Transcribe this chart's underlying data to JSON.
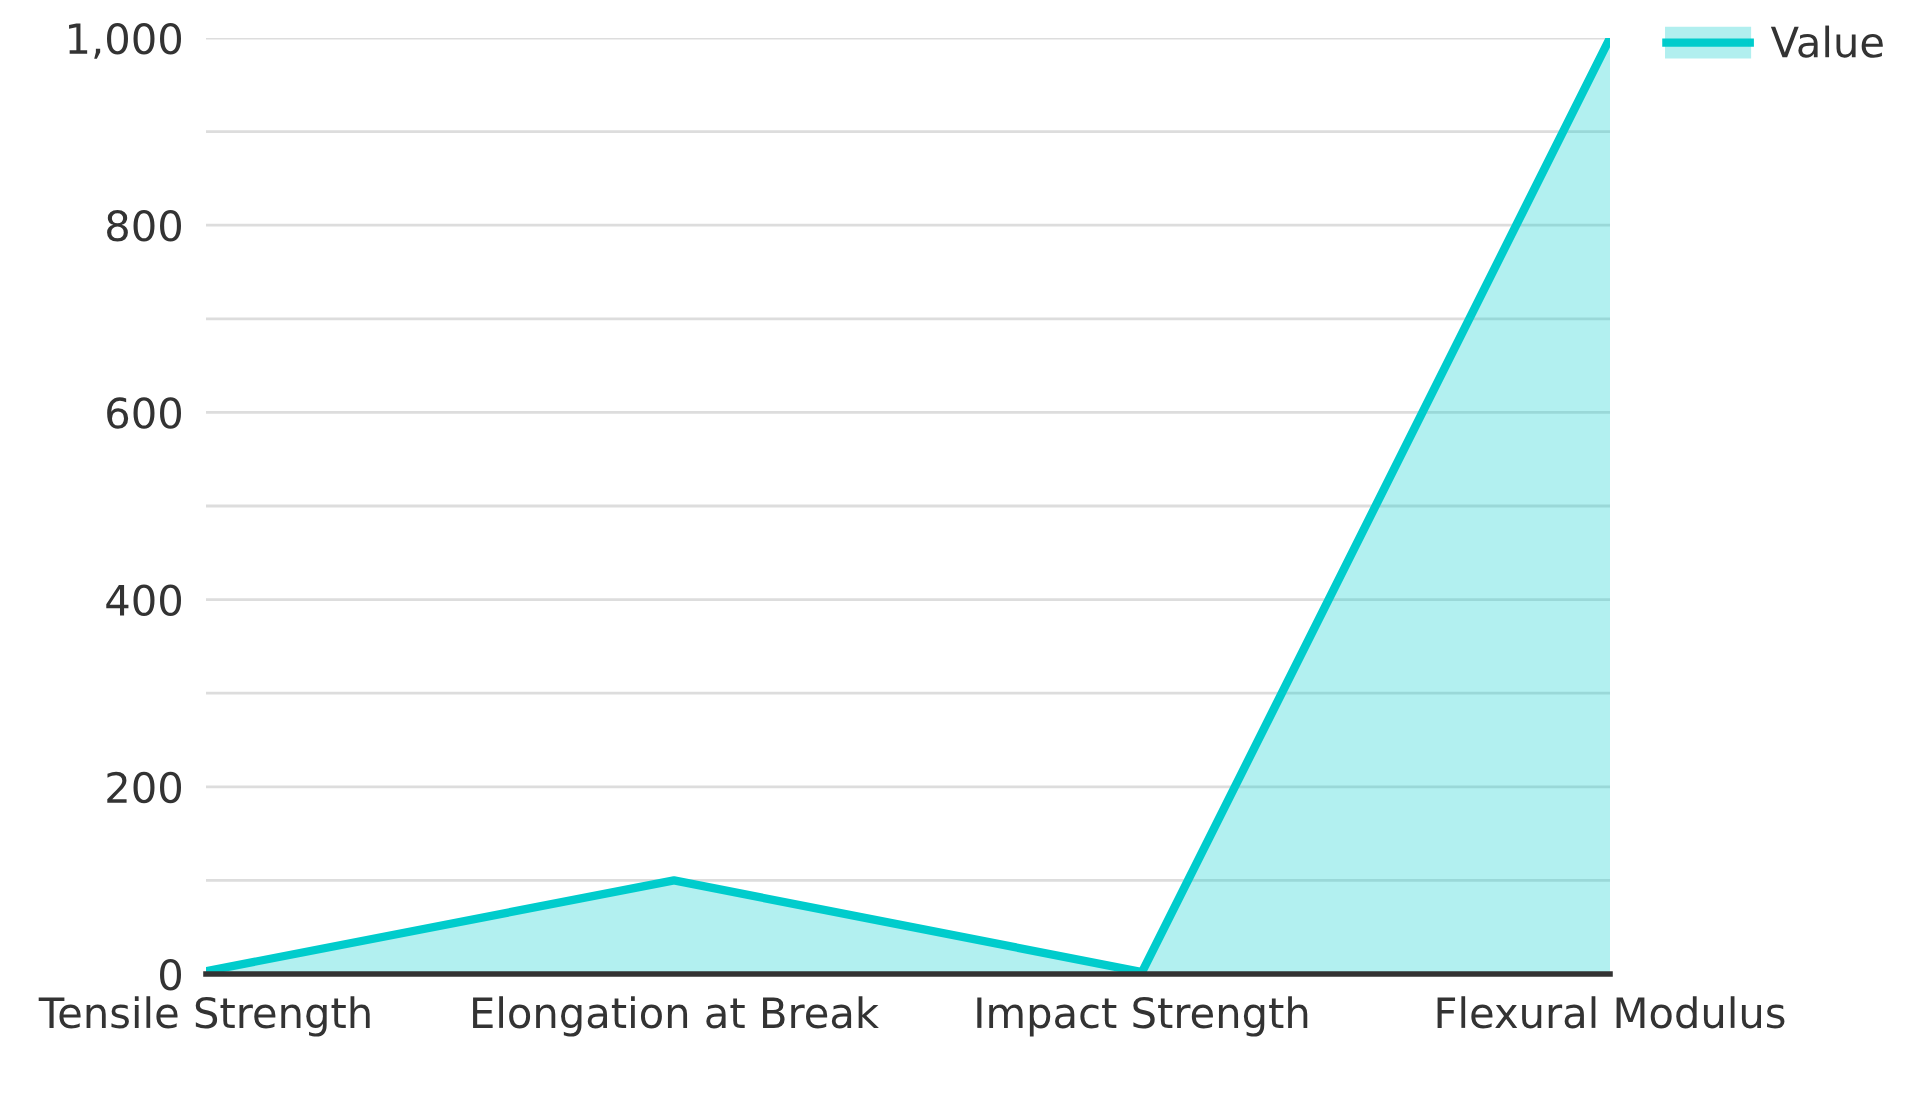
{
  "chart_data": {
    "type": "area",
    "categories": [
      "Tensile Strength",
      "Elongation at Break",
      "Impact Strength",
      "Flexural Modulus"
    ],
    "series": [
      {
        "name": "Value",
        "color": "#00cccc",
        "values": [
          3,
          100,
          2,
          1000
        ]
      }
    ],
    "ylim": [
      0,
      1000
    ],
    "yticks": [
      0,
      {
        "value": 100,
        "label": null
      },
      200,
      {
        "value": 300,
        "label": null
      },
      400,
      {
        "value": 500,
        "label": null
      },
      600,
      {
        "value": 700,
        "label": null
      },
      800,
      {
        "value": 900,
        "label": null
      },
      {
        "value": 1000,
        "label": "1,000"
      }
    ],
    "grid": "y",
    "legend": "top right"
  }
}
